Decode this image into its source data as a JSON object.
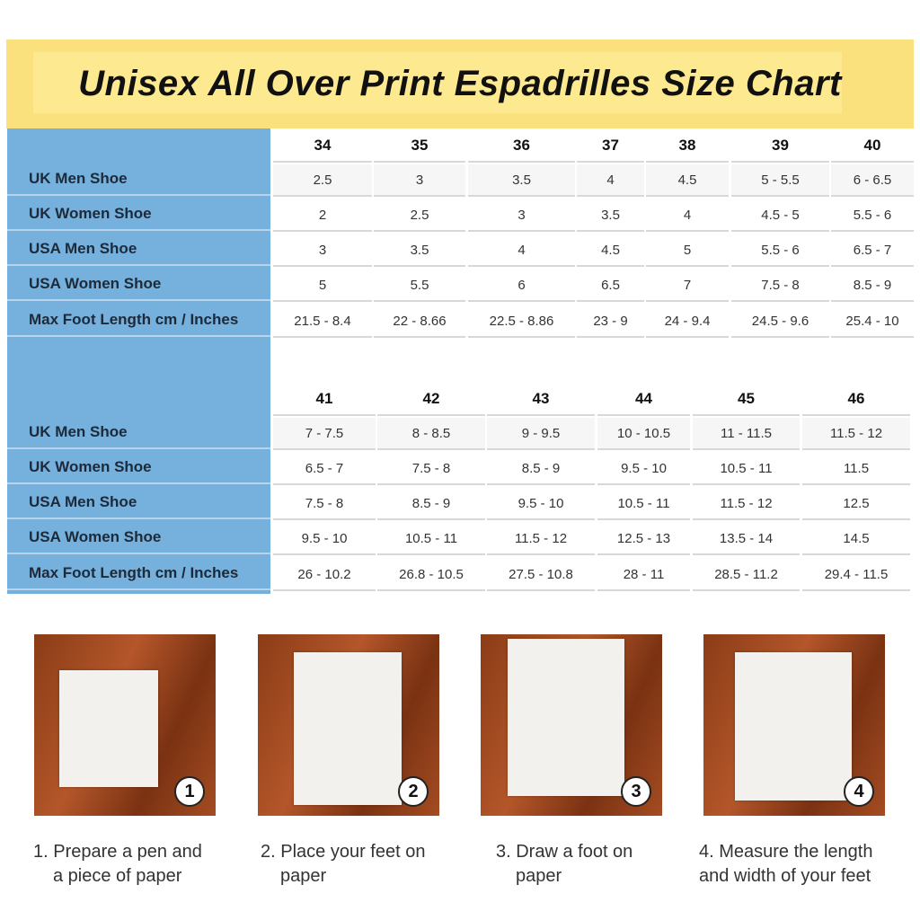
{
  "title": "Unisex All Over Print Espadrilles Size Chart",
  "row_labels": [
    "UK Men Shoe",
    "UK Women Shoe",
    "USA Men Shoe",
    "USA Women Shoe",
    "Max Foot Length cm / Inches"
  ],
  "table1": {
    "sizes": [
      "34",
      "35",
      "36",
      "37",
      "38",
      "39",
      "40"
    ],
    "rows": [
      [
        "2.5",
        "3",
        "3.5",
        "4",
        "4.5",
        "5 - 5.5",
        "6 - 6.5"
      ],
      [
        "2",
        "2.5",
        "3",
        "3.5",
        "4",
        "4.5 - 5",
        "5.5 - 6"
      ],
      [
        "3",
        "3.5",
        "4",
        "4.5",
        "5",
        "5.5 - 6",
        "6.5 - 7"
      ],
      [
        "5",
        "5.5",
        "6",
        "6.5",
        "7",
        "7.5 - 8",
        "8.5 - 9"
      ],
      [
        "21.5 - 8.4",
        "22 - 8.66",
        "22.5 - 8.86",
        "23 - 9",
        "24 - 9.4",
        "24.5 - 9.6",
        "25.4 - 10"
      ]
    ]
  },
  "table2": {
    "sizes": [
      "41",
      "42",
      "43",
      "44",
      "45",
      "46"
    ],
    "rows": [
      [
        "7 - 7.5",
        "8 - 8.5",
        "9 - 9.5",
        "10 - 10.5",
        "11 - 11.5",
        "11.5 - 12"
      ],
      [
        "6.5 - 7",
        "7.5 - 8",
        "8.5 - 9",
        "9.5 - 10",
        "10.5 - 11",
        "11.5"
      ],
      [
        "7.5 - 8",
        "8.5 - 9",
        "9.5 - 10",
        "10.5 - 11",
        "11.5 - 12",
        "12.5"
      ],
      [
        "9.5 - 10",
        "10.5 - 11",
        "11.5 - 12",
        "12.5 - 13",
        "13.5 - 14",
        "14.5"
      ],
      [
        "26 - 10.2",
        "26.8 - 10.5",
        "27.5 - 10.8",
        "28 - 11",
        "28.5 - 11.2",
        "29.4 - 11.5"
      ]
    ]
  },
  "steps": [
    {
      "number": "1",
      "caption_line1": "1. Prepare a pen and",
      "caption_line2": "a piece of paper"
    },
    {
      "number": "2",
      "caption_line1": "2. Place your feet on",
      "caption_line2": "paper"
    },
    {
      "number": "3",
      "caption_line1": "3. Draw a foot on",
      "caption_line2": "paper"
    },
    {
      "number": "4",
      "caption_line1": "4. Measure the length",
      "caption_line2": "and width of your feet"
    }
  ],
  "colors": {
    "banner": "#fbe07e",
    "label_column": "#76b0dc"
  }
}
